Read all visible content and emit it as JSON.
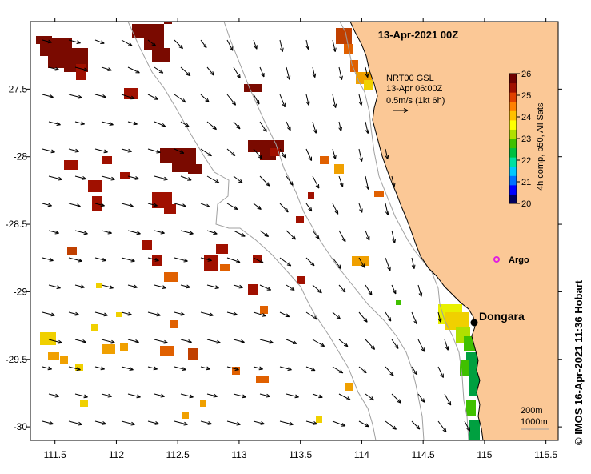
{
  "title": "13-Apr-2021 00Z",
  "current_legend": {
    "line1": "NRT00 GSL",
    "line2": "13-Apr 06:00Z",
    "line3": "0.5m/s (1kt 6h)"
  },
  "axes": {
    "x_ticks": [
      "111.5",
      "112",
      "112.5",
      "113",
      "113.5",
      "114",
      "114.5",
      "115",
      "115.5"
    ],
    "x_values": [
      111.5,
      112,
      112.5,
      113,
      113.5,
      114,
      114.5,
      115,
      115.5
    ],
    "y_ticks": [
      "-27.5",
      "-28",
      "-28.5",
      "-29",
      "-29.5",
      "-30"
    ],
    "y_values": [
      -27.5,
      -28,
      -28.5,
      -29,
      -29.5,
      -30
    ],
    "lon_range": [
      111.3,
      115.6
    ],
    "lat_range": [
      -30.1,
      -27.0
    ]
  },
  "colorbar": {
    "ticks": [
      "26",
      "25",
      "24",
      "23",
      "22",
      "21",
      "20"
    ],
    "label": "4h comp, p50, All Sats",
    "range": [
      20,
      26
    ],
    "colors": [
      "#00005f",
      "#0000ff",
      "#0070ff",
      "#00c8ff",
      "#00e0a0",
      "#00c040",
      "#40c000",
      "#b0e000",
      "#ffff00",
      "#ffc000",
      "#ff8000",
      "#e04000",
      "#a01000",
      "#6e0000"
    ]
  },
  "places": {
    "dongara": {
      "label": "Dongara",
      "lon": 114.93,
      "lat": -29.25
    },
    "argo": {
      "label": "Argo",
      "lon": 115.12,
      "lat": -28.83,
      "color": "#e020e0"
    }
  },
  "scale": {
    "line1": "200m",
    "line2": "1000m"
  },
  "credit": "© IMOS 16-Apr-2021 11:36 Hobart",
  "colors": {
    "land": "#fbc896",
    "water": "#ffffff",
    "isobath": "#a0a0a0"
  }
}
